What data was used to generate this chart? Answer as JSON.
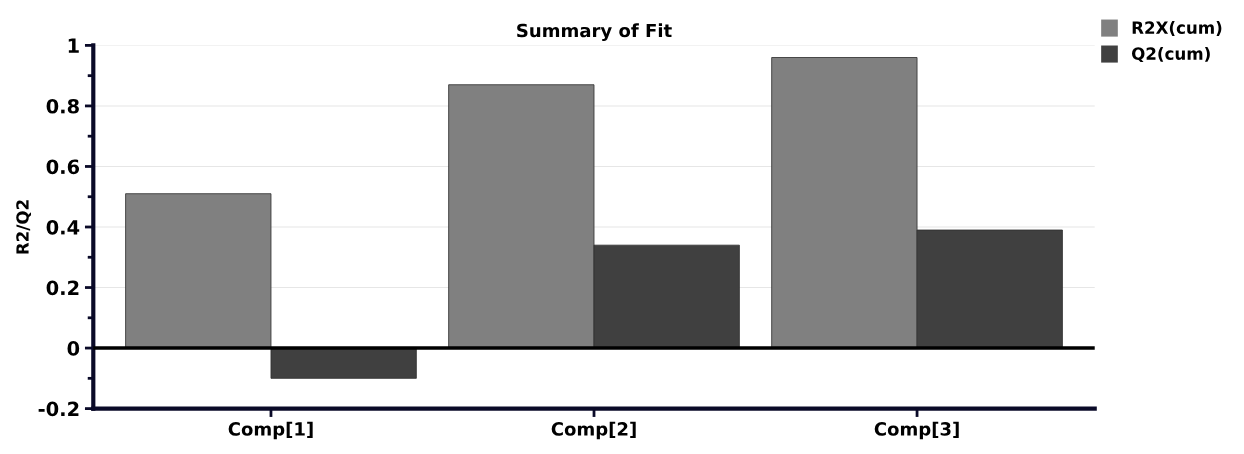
{
  "chart_data": {
    "type": "bar",
    "title": "Summary of Fit",
    "ylabel": "R2/Q2",
    "categories": [
      "Comp[1]",
      "Comp[2]",
      "Comp[3]"
    ],
    "series": [
      {
        "name": "R2X(cum)",
        "color": "#808080",
        "values": [
          0.51,
          0.87,
          0.96
        ]
      },
      {
        "name": "Q2(cum)",
        "color": "#404040",
        "values": [
          -0.1,
          0.34,
          0.39
        ]
      }
    ],
    "ylim": [
      -0.2,
      1
    ],
    "yticks": [
      -0.2,
      0,
      0.2,
      0.4,
      0.6,
      0.8,
      1
    ],
    "grid": "y",
    "legend": "top right",
    "ref_lines": [
      {
        "axis": "y",
        "value": 0,
        "color": "#000000"
      }
    ]
  }
}
